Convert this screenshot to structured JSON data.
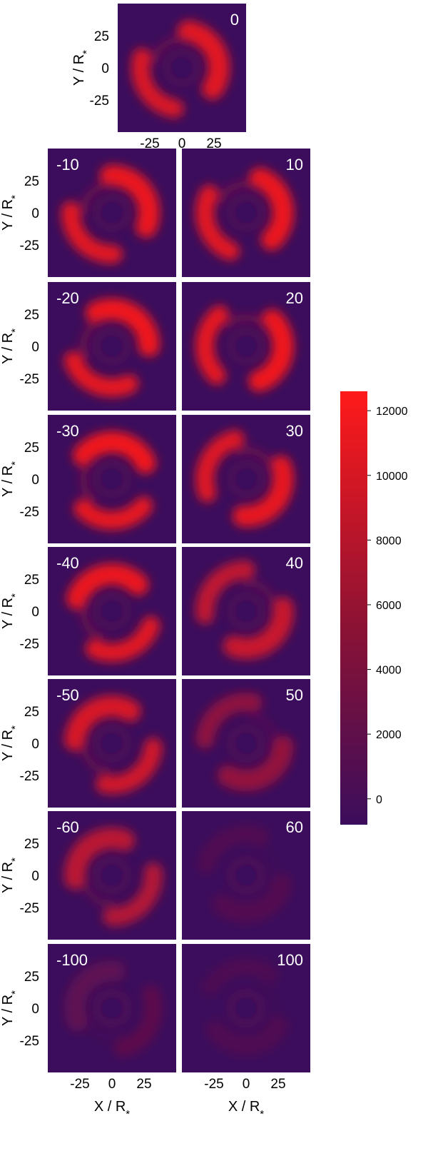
{
  "chart_data": {
    "type": "heatmap",
    "xlabel": "X / R",
    "ylabel": "Y / R",
    "subscript": "*",
    "x_ticks": [
      -25,
      0,
      25
    ],
    "y_ticks": [
      25,
      0,
      -25
    ],
    "x_tick_labels": [
      "-25",
      "0",
      "25"
    ],
    "y_tick_labels": [
      "25",
      "0",
      "-25"
    ],
    "xlim": [
      -50,
      50
    ],
    "ylim": [
      -50,
      50
    ],
    "colorbar": {
      "ticks": [
        0,
        2000,
        4000,
        6000,
        8000,
        10000,
        12000
      ],
      "tick_labels": [
        "0",
        "2000",
        "4000",
        "6000",
        "8000",
        "10000",
        "12000"
      ],
      "range": [
        -800,
        12600
      ],
      "color_low": "#3b0d5c",
      "color_high": "#ff1a1a"
    },
    "panels": [
      {
        "label": "0",
        "intensity": 0.85,
        "rotation_deg": 0
      },
      {
        "label": "-10",
        "intensity": 0.9,
        "rotation_deg": -12
      },
      {
        "label": "10",
        "intensity": 0.9,
        "rotation_deg": 12
      },
      {
        "label": "-20",
        "intensity": 0.92,
        "rotation_deg": -35
      },
      {
        "label": "20",
        "intensity": 0.92,
        "rotation_deg": 35
      },
      {
        "label": "-30",
        "intensity": 0.93,
        "rotation_deg": -60
      },
      {
        "label": "30",
        "intensity": 0.88,
        "rotation_deg": 60
      },
      {
        "label": "-40",
        "intensity": 0.9,
        "rotation_deg": -80
      },
      {
        "label": "40",
        "intensity": 0.72,
        "rotation_deg": 75
      },
      {
        "label": "-50",
        "intensity": 0.8,
        "rotation_deg": -95
      },
      {
        "label": "50",
        "intensity": 0.45,
        "rotation_deg": 85
      },
      {
        "label": "-60",
        "intensity": 0.65,
        "rotation_deg": -105
      },
      {
        "label": "60",
        "intensity": 0.12,
        "rotation_deg": 95
      },
      {
        "label": "-100",
        "intensity": 0.18,
        "rotation_deg": -120
      },
      {
        "label": "100",
        "intensity": 0.1,
        "rotation_deg": 110
      }
    ]
  }
}
